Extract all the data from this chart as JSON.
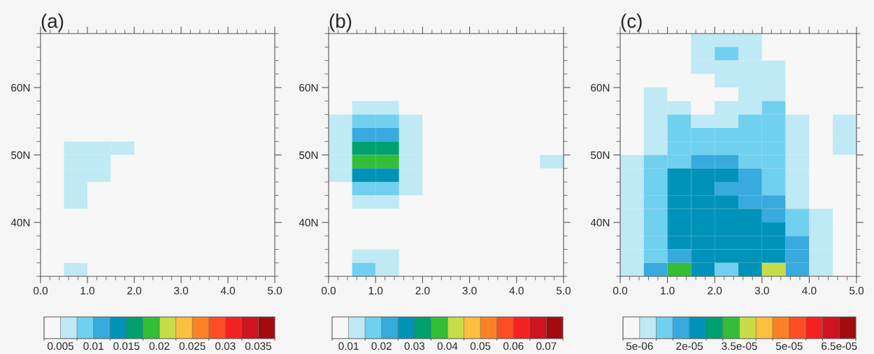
{
  "chart_data": [
    {
      "type": "heatmap",
      "title": "(a)",
      "x": [
        0.25,
        0.75,
        1.25,
        1.75,
        2.25,
        2.75,
        3.25,
        3.75,
        4.25,
        4.75
      ],
      "y": [
        67,
        65,
        63,
        61,
        59,
        57,
        55,
        53,
        51,
        49,
        47,
        45,
        43,
        41,
        39,
        37,
        35,
        33
      ],
      "cells": [
        [
          0.00375,
          0.00375,
          0.00375,
          0.00375,
          0.00375,
          0.00375,
          0.00375,
          0.00375,
          0.00375,
          0.00375
        ],
        [
          0.00375,
          0.00375,
          0.00375,
          0.00375,
          0.00375,
          0.00375,
          0.00375,
          0.00375,
          0.00375,
          0.00375
        ],
        [
          0.00375,
          0.00375,
          0.00375,
          0.00375,
          0.00375,
          0.00375,
          0.00375,
          0.00375,
          0.00375,
          0.00375
        ],
        [
          0.00375,
          0.00375,
          0.00375,
          0.00375,
          0.00375,
          0.00375,
          0.00375,
          0.00375,
          0.00375,
          0.00375
        ],
        [
          0.00375,
          0.00375,
          0.00375,
          0.00375,
          0.00375,
          0.00375,
          0.00375,
          0.00375,
          0.00375,
          0.00375
        ],
        [
          0.00375,
          0.00375,
          0.00375,
          0.00375,
          0.00375,
          0.00375,
          0.00375,
          0.00375,
          0.00375,
          0.00375
        ],
        [
          0.00375,
          0.00375,
          0.00375,
          0.00375,
          0.00375,
          0.00375,
          0.00375,
          0.00375,
          0.00375,
          0.00375
        ],
        [
          0.00375,
          0.00375,
          0.00375,
          0.00375,
          0.00375,
          0.00375,
          0.00375,
          0.00375,
          0.00375,
          0.00375
        ],
        [
          0.00375,
          0.00625,
          0.00625,
          0.00625,
          0.00375,
          0.00375,
          0.00375,
          0.00375,
          0.00375,
          0.00375
        ],
        [
          0.00375,
          0.00625,
          0.00625,
          0.00375,
          0.00375,
          0.00375,
          0.00375,
          0.00375,
          0.00375,
          0.00375
        ],
        [
          0.00375,
          0.00625,
          0.00625,
          0.00375,
          0.00375,
          0.00375,
          0.00375,
          0.00375,
          0.00375,
          0.00375
        ],
        [
          0.00375,
          0.00625,
          0.00375,
          0.00375,
          0.00375,
          0.00375,
          0.00375,
          0.00375,
          0.00375,
          0.00375
        ],
        [
          0.00375,
          0.00625,
          0.00375,
          0.00375,
          0.00375,
          0.00375,
          0.00375,
          0.00375,
          0.00375,
          0.00375
        ],
        [
          0.00375,
          0.00375,
          0.00375,
          0.00375,
          0.00375,
          0.00375,
          0.00375,
          0.00375,
          0.00375,
          0.00375
        ],
        [
          0.00375,
          0.00375,
          0.00375,
          0.00375,
          0.00375,
          0.00375,
          0.00375,
          0.00375,
          0.00375,
          0.00375
        ],
        [
          0.00375,
          0.00375,
          0.00375,
          0.00375,
          0.00375,
          0.00375,
          0.00375,
          0.00375,
          0.00375,
          0.00375
        ],
        [
          0.00375,
          0.00375,
          0.00375,
          0.00375,
          0.00375,
          0.00375,
          0.00375,
          0.00375,
          0.00375,
          0.00375
        ],
        [
          0.00375,
          0.00625,
          0.00375,
          0.00375,
          0.00375,
          0.00375,
          0.00375,
          0.00375,
          0.00375,
          0.00375
        ]
      ],
      "colors": [
        "#f7f7f7",
        "#bfe9f4",
        "#70d0ef",
        "#38aadd",
        "#0093b9",
        "#00a070",
        "#34bd36",
        "#c7dc48",
        "#fdbf3e",
        "#fd8124",
        "#fd4e28",
        "#f42121",
        "#cd1420",
        "#a10b0e"
      ],
      "clim": [
        0.0025,
        0.0375
      ],
      "cticks": [
        0.005,
        0.01,
        0.015,
        0.02,
        0.025,
        0.03,
        0.035
      ],
      "xlim": [
        0,
        5
      ],
      "ylim": [
        32,
        68
      ],
      "xticks": [
        {
          "value": 0,
          "label": "0.0"
        },
        {
          "value": 1,
          "label": "1.0"
        },
        {
          "value": 2,
          "label": "2.0"
        },
        {
          "value": 3,
          "label": "3.0"
        },
        {
          "value": 4,
          "label": "4.0"
        },
        {
          "value": 5,
          "label": "5.0"
        }
      ],
      "yticks": [
        {
          "value": 40,
          "label": "40N"
        },
        {
          "value": 50,
          "label": "50N"
        },
        {
          "value": 60,
          "label": "60N"
        }
      ]
    },
    {
      "type": "heatmap",
      "title": "(b)",
      "x": [
        0.25,
        0.75,
        1.25,
        1.75,
        2.25,
        2.75,
        3.25,
        3.75,
        4.25,
        4.75
      ],
      "y": [
        67,
        65,
        63,
        61,
        59,
        57,
        55,
        53,
        51,
        49,
        47,
        45,
        43,
        41,
        39,
        37,
        35,
        33
      ],
      "cells": [
        [
          0.0075,
          0.0075,
          0.0075,
          0.0075,
          0.0075,
          0.0075,
          0.0075,
          0.0075,
          0.0075,
          0.0075
        ],
        [
          0.0075,
          0.0075,
          0.0075,
          0.0075,
          0.0075,
          0.0075,
          0.0075,
          0.0075,
          0.0075,
          0.0075
        ],
        [
          0.0075,
          0.0075,
          0.0075,
          0.0075,
          0.0075,
          0.0075,
          0.0075,
          0.0075,
          0.0075,
          0.0075
        ],
        [
          0.0075,
          0.0075,
          0.0075,
          0.0075,
          0.0075,
          0.0075,
          0.0075,
          0.0075,
          0.0075,
          0.0075
        ],
        [
          0.0075,
          0.0075,
          0.0075,
          0.0075,
          0.0075,
          0.0075,
          0.0075,
          0.0075,
          0.0075,
          0.0075
        ],
        [
          0.0075,
          0.0125,
          0.0125,
          0.0075,
          0.0075,
          0.0075,
          0.0075,
          0.0075,
          0.0075,
          0.0075
        ],
        [
          0.0125,
          0.0175,
          0.0175,
          0.0125,
          0.0075,
          0.0075,
          0.0075,
          0.0075,
          0.0075,
          0.0075
        ],
        [
          0.0125,
          0.0225,
          0.0225,
          0.0125,
          0.0075,
          0.0075,
          0.0075,
          0.0075,
          0.0075,
          0.0075
        ],
        [
          0.0125,
          0.0325,
          0.0325,
          0.0125,
          0.0075,
          0.0075,
          0.0075,
          0.0075,
          0.0075,
          0.0075
        ],
        [
          0.0125,
          0.0375,
          0.0375,
          0.0125,
          0.0075,
          0.0075,
          0.0075,
          0.0075,
          0.0075,
          0.0125
        ],
        [
          0.0125,
          0.0275,
          0.0275,
          0.0125,
          0.0075,
          0.0075,
          0.0075,
          0.0075,
          0.0075,
          0.0075
        ],
        [
          0.0075,
          0.0175,
          0.0175,
          0.0125,
          0.0075,
          0.0075,
          0.0075,
          0.0075,
          0.0075,
          0.0075
        ],
        [
          0.0075,
          0.0125,
          0.0125,
          0.0075,
          0.0075,
          0.0075,
          0.0075,
          0.0075,
          0.0075,
          0.0075
        ],
        [
          0.0075,
          0.0075,
          0.0075,
          0.0075,
          0.0075,
          0.0075,
          0.0075,
          0.0075,
          0.0075,
          0.0075
        ],
        [
          0.0075,
          0.0075,
          0.0075,
          0.0075,
          0.0075,
          0.0075,
          0.0075,
          0.0075,
          0.0075,
          0.0075
        ],
        [
          0.0075,
          0.0075,
          0.0075,
          0.0075,
          0.0075,
          0.0075,
          0.0075,
          0.0075,
          0.0075,
          0.0075
        ],
        [
          0.0075,
          0.0125,
          0.0125,
          0.0075,
          0.0075,
          0.0075,
          0.0075,
          0.0075,
          0.0075,
          0.0075
        ],
        [
          0.0075,
          0.0175,
          0.0125,
          0.0075,
          0.0075,
          0.0075,
          0.0075,
          0.0075,
          0.0075,
          0.0075
        ]
      ],
      "colors": [
        "#f7f7f7",
        "#bfe9f4",
        "#70d0ef",
        "#38aadd",
        "#0093b9",
        "#00a070",
        "#34bd36",
        "#c7dc48",
        "#fdbf3e",
        "#fd8124",
        "#fd4e28",
        "#f42121",
        "#cd1420",
        "#a10b0e"
      ],
      "clim": [
        0.005,
        0.075
      ],
      "cticks": [
        0.01,
        0.02,
        0.03,
        0.04,
        0.05,
        0.06,
        0.07
      ],
      "xlim": [
        0,
        5
      ],
      "ylim": [
        32,
        68
      ],
      "xticks": [
        {
          "value": 0,
          "label": "0.0"
        },
        {
          "value": 1,
          "label": "1.0"
        },
        {
          "value": 2,
          "label": "2.0"
        },
        {
          "value": 3,
          "label": "3.0"
        },
        {
          "value": 4,
          "label": "4.0"
        },
        {
          "value": 5,
          "label": "5.0"
        }
      ],
      "yticks": [
        {
          "value": 40,
          "label": "40N"
        },
        {
          "value": 50,
          "label": "50N"
        },
        {
          "value": 60,
          "label": "60N"
        }
      ]
    },
    {
      "type": "heatmap",
      "title": "(c)",
      "x": [
        0.25,
        0.75,
        1.25,
        1.75,
        2.25,
        2.75,
        3.25,
        3.75,
        4.25,
        4.75
      ],
      "y": [
        67,
        65,
        63,
        61,
        59,
        57,
        55,
        53,
        51,
        49,
        47,
        45,
        43,
        41,
        39,
        37,
        35,
        33
      ],
      "cells": [
        [
          2.5e-06,
          2.5e-06,
          2.5e-06,
          7.5e-06,
          7.5e-06,
          7.5e-06,
          2.5e-06,
          2.5e-06,
          2.5e-06,
          2.5e-06
        ],
        [
          2.5e-06,
          2.5e-06,
          2.5e-06,
          7.5e-06,
          1.25e-05,
          7.5e-06,
          2.5e-06,
          2.5e-06,
          2.5e-06,
          2.5e-06
        ],
        [
          2.5e-06,
          2.5e-06,
          2.5e-06,
          7.5e-06,
          7.5e-06,
          7.5e-06,
          7.5e-06,
          2.5e-06,
          2.5e-06,
          2.5e-06
        ],
        [
          2.5e-06,
          2.5e-06,
          2.5e-06,
          2.5e-06,
          7.5e-06,
          7.5e-06,
          7.5e-06,
          2.5e-06,
          2.5e-06,
          2.5e-06
        ],
        [
          2.5e-06,
          7.5e-06,
          2.5e-06,
          2.5e-06,
          2.5e-06,
          7.5e-06,
          7.5e-06,
          2.5e-06,
          2.5e-06,
          2.5e-06
        ],
        [
          2.5e-06,
          7.5e-06,
          7.5e-06,
          2.5e-06,
          7.5e-06,
          7.5e-06,
          1.25e-05,
          2.5e-06,
          2.5e-06,
          2.5e-06
        ],
        [
          2.5e-06,
          7.5e-06,
          1.25e-05,
          7.5e-06,
          7.5e-06,
          1.25e-05,
          1.25e-05,
          7.5e-06,
          2.5e-06,
          7.5e-06
        ],
        [
          2.5e-06,
          7.5e-06,
          1.25e-05,
          1.25e-05,
          1.25e-05,
          1.25e-05,
          1.25e-05,
          7.5e-06,
          2.5e-06,
          7.5e-06
        ],
        [
          2.5e-06,
          7.5e-06,
          1.25e-05,
          1.25e-05,
          1.25e-05,
          1.25e-05,
          1.25e-05,
          7.5e-06,
          2.5e-06,
          7.5e-06
        ],
        [
          7.5e-06,
          1.25e-05,
          1.25e-05,
          1.75e-05,
          1.75e-05,
          1.25e-05,
          1.25e-05,
          7.5e-06,
          2.5e-06,
          2.5e-06
        ],
        [
          7.5e-06,
          1.25e-05,
          2.25e-05,
          2.25e-05,
          2.25e-05,
          1.75e-05,
          1.25e-05,
          7.5e-06,
          2.5e-06,
          2.5e-06
        ],
        [
          7.5e-06,
          1.25e-05,
          2.25e-05,
          2.25e-05,
          1.75e-05,
          1.75e-05,
          1.25e-05,
          7.5e-06,
          2.5e-06,
          2.5e-06
        ],
        [
          7.5e-06,
          1.25e-05,
          2.25e-05,
          2.25e-05,
          2.25e-05,
          1.75e-05,
          1.75e-05,
          7.5e-06,
          2.5e-06,
          2.5e-06
        ],
        [
          7.5e-06,
          1.25e-05,
          2.25e-05,
          2.25e-05,
          2.25e-05,
          2.25e-05,
          1.75e-05,
          1.25e-05,
          7.5e-06,
          2.5e-06
        ],
        [
          7.5e-06,
          1.25e-05,
          2.25e-05,
          2.25e-05,
          2.25e-05,
          2.25e-05,
          2.25e-05,
          1.25e-05,
          7.5e-06,
          2.5e-06
        ],
        [
          7.5e-06,
          1.25e-05,
          2.25e-05,
          2.25e-05,
          2.25e-05,
          2.25e-05,
          2.25e-05,
          1.75e-05,
          7.5e-06,
          2.5e-06
        ],
        [
          7.5e-06,
          1.25e-05,
          1.75e-05,
          2.25e-05,
          2.25e-05,
          2.25e-05,
          2.25e-05,
          1.75e-05,
          7.5e-06,
          2.5e-06
        ],
        [
          7.5e-06,
          1.75e-05,
          3.25e-05,
          2.25e-05,
          1.25e-05,
          2.25e-05,
          3.75e-05,
          1.75e-05,
          7.5e-06,
          2.5e-06
        ]
      ],
      "colors": [
        "#f7f7f7",
        "#bfe9f4",
        "#70d0ef",
        "#38aadd",
        "#0093b9",
        "#00a070",
        "#34bd36",
        "#c7dc48",
        "#fdbf3e",
        "#fd8124",
        "#fd4e28",
        "#f42121",
        "#cd1420",
        "#a10b0e"
      ],
      "clim": [
        0,
        7e-05
      ],
      "cticks": [
        {
          "value": 5e-06,
          "label": "5e-06"
        },
        {
          "value": 2e-05,
          "label": "2e-05"
        },
        {
          "value": 3.5e-05,
          "label": "3.5e-05"
        },
        {
          "value": 5e-05,
          "label": "5e-05"
        },
        {
          "value": 6.5e-05,
          "label": "6.5e-05"
        }
      ],
      "xlim": [
        0,
        5
      ],
      "ylim": [
        32,
        68
      ],
      "xticks": [
        {
          "value": 0,
          "label": "0.0"
        },
        {
          "value": 1,
          "label": "1.0"
        },
        {
          "value": 2,
          "label": "2.0"
        },
        {
          "value": 3,
          "label": "3.0"
        },
        {
          "value": 4,
          "label": "4.0"
        },
        {
          "value": 5,
          "label": "5.0"
        }
      ],
      "yticks": [
        {
          "value": 40,
          "label": "40N"
        },
        {
          "value": 50,
          "label": "50N"
        },
        {
          "value": 60,
          "label": "60N"
        }
      ]
    }
  ]
}
